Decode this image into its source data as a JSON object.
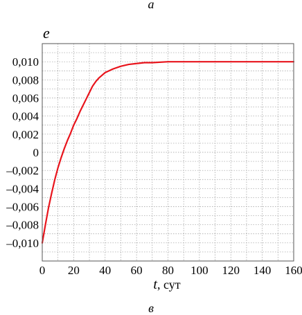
{
  "panel_labels": {
    "top": "а",
    "bottom": "в"
  },
  "chart_data": {
    "type": "line",
    "title": "",
    "ylabel": "e",
    "xlabel_var": "t",
    "xlabel_unit": ", сут",
    "xlim": [
      0,
      160
    ],
    "ylim": [
      -0.012,
      0.012
    ],
    "xticks": [
      0,
      20,
      40,
      60,
      80,
      100,
      120,
      140,
      160
    ],
    "yticks": [
      -0.01,
      -0.008,
      -0.006,
      -0.004,
      -0.002,
      0,
      0.002,
      0.004,
      0.006,
      0.008,
      0.01
    ],
    "ytick_labels": [
      "–0,010",
      "–0,008",
      "–0,006",
      "–0,004",
      "–0,002",
      "0",
      "0,002",
      "0,004",
      "0,006",
      "0,008",
      "0,010"
    ],
    "grid": true,
    "grid_x_step": 10,
    "grid_y_step": 0.001,
    "series": [
      {
        "color": "#e8141c",
        "x": [
          0,
          2,
          4,
          6,
          8,
          10,
          12,
          14,
          16,
          18,
          20,
          22,
          24,
          26,
          28,
          30,
          32,
          34,
          36,
          38,
          40,
          45,
          50,
          55,
          60,
          65,
          70,
          80,
          90,
          100,
          120,
          140,
          160
        ],
        "y": [
          -0.01,
          -0.008,
          -0.0061,
          -0.0045,
          -0.003,
          -0.0017,
          -0.0006,
          0.0004,
          0.0013,
          0.0021,
          0.003,
          0.0037,
          0.0045,
          0.0052,
          0.0059,
          0.0066,
          0.0073,
          0.0078,
          0.0082,
          0.0085,
          0.0088,
          0.0092,
          0.0095,
          0.0097,
          0.0098,
          0.0099,
          0.0099,
          0.01,
          0.01,
          0.01,
          0.01,
          0.01,
          0.01
        ]
      }
    ]
  }
}
